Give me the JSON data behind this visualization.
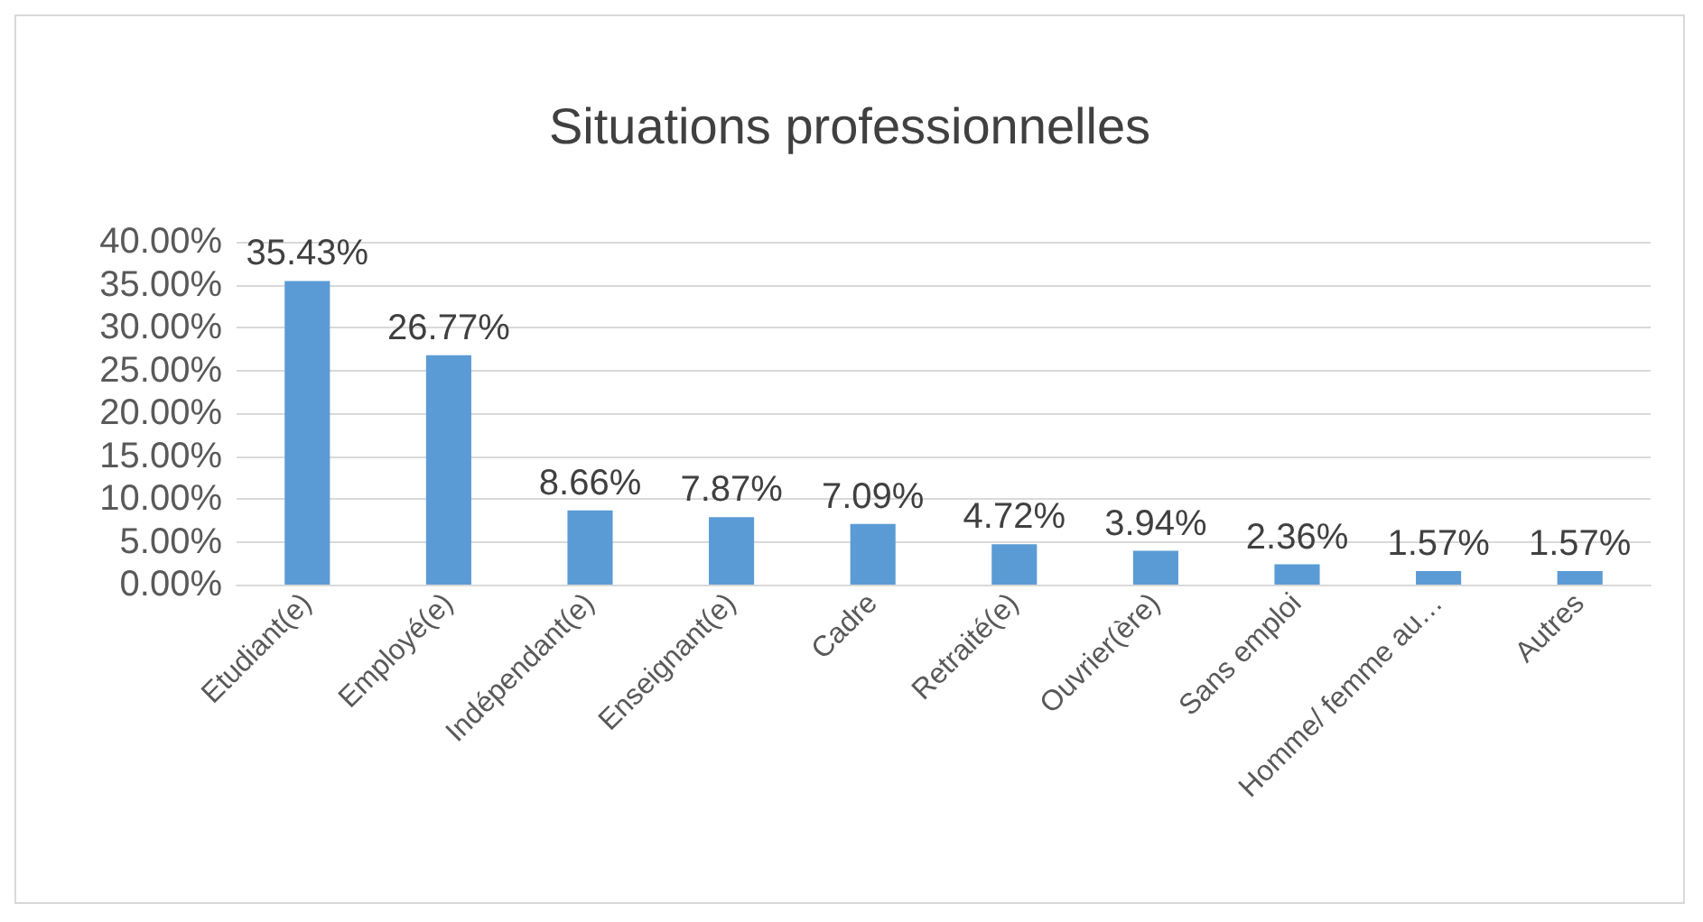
{
  "chart_data": {
    "type": "bar",
    "title": "Situations professionnelles",
    "categories": [
      "Etudiant(e)",
      "Employé(e)",
      "Indépendant(e)",
      "Enseignant(e)",
      "Cadre",
      "Retraité(e)",
      "Ouvrier(ère)",
      "Sans emploi",
      "Homme/ femme au…",
      "Autres"
    ],
    "values": [
      35.43,
      26.77,
      8.66,
      7.87,
      7.09,
      4.72,
      3.94,
      2.36,
      1.57,
      1.57
    ],
    "value_labels": [
      "35.43%",
      "26.77%",
      "8.66%",
      "7.87%",
      "7.09%",
      "4.72%",
      "3.94%",
      "2.36%",
      "1.57%",
      "1.57%"
    ],
    "color": "#5b9bd5",
    "ylim": [
      0,
      40
    ],
    "yticks": [
      {
        "value": 0,
        "label": "0.00%"
      },
      {
        "value": 5,
        "label": "5.00%"
      },
      {
        "value": 10,
        "label": "10.00%"
      },
      {
        "value": 15,
        "label": "15.00%"
      },
      {
        "value": 20,
        "label": "20.00%"
      },
      {
        "value": 25,
        "label": "25.00%"
      },
      {
        "value": 30,
        "label": "30.00%"
      },
      {
        "value": 35,
        "label": "35.00%"
      },
      {
        "value": 40,
        "label": "40.00%"
      }
    ],
    "grid": "y"
  }
}
